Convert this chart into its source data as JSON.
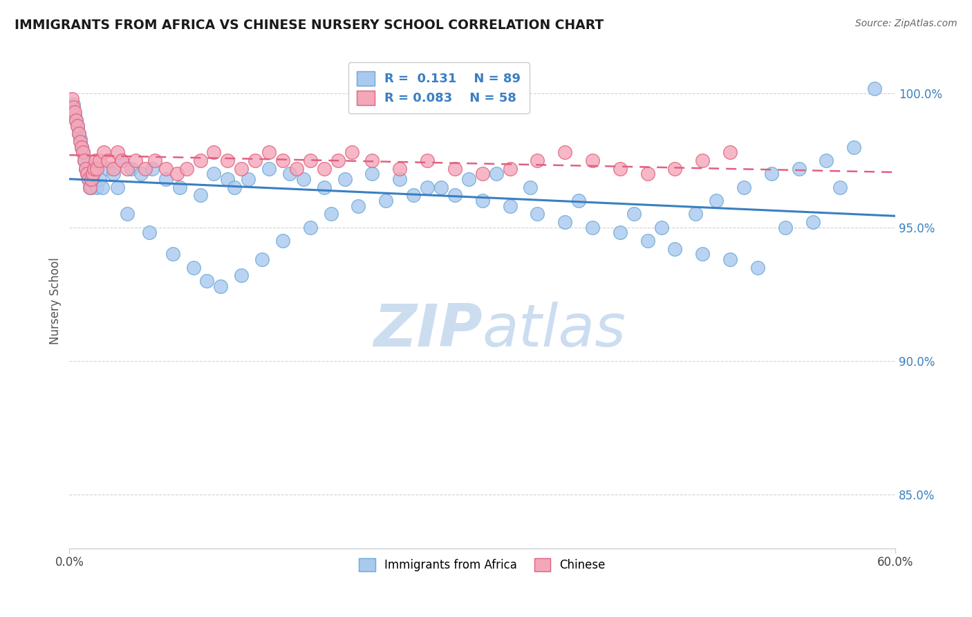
{
  "title": "IMMIGRANTS FROM AFRICA VS CHINESE NURSERY SCHOOL CORRELATION CHART",
  "source_text": "Source: ZipAtlas.com",
  "ylabel": "Nursery School",
  "xlim": [
    0.0,
    60.0
  ],
  "ylim": [
    83.0,
    101.5
  ],
  "y_ticks": [
    85.0,
    90.0,
    95.0,
    100.0
  ],
  "y_tick_labels": [
    "85.0%",
    "90.0%",
    "95.0%",
    "100.0%"
  ],
  "series1_color": "#aac9ef",
  "series1_edge_color": "#6aaad4",
  "series2_color": "#f4a7b9",
  "series2_edge_color": "#e0607e",
  "trendline1_color": "#3a7fc1",
  "trendline2_color": "#e06080",
  "watermark_color": "#ccddf0",
  "legend_label1": "Immigrants from Africa",
  "legend_label2": "Chinese",
  "blue_x": [
    0.2,
    0.3,
    0.4,
    0.5,
    0.6,
    0.7,
    0.8,
    0.9,
    1.0,
    1.1,
    1.2,
    1.3,
    1.4,
    1.5,
    1.6,
    1.7,
    1.8,
    1.9,
    2.0,
    2.2,
    2.4,
    2.8,
    3.2,
    3.8,
    4.5,
    5.2,
    6.0,
    7.0,
    8.0,
    9.5,
    10.5,
    11.5,
    12.0,
    13.0,
    14.5,
    16.0,
    17.0,
    18.5,
    20.0,
    22.0,
    24.0,
    26.0,
    28.0,
    30.0,
    32.0,
    34.0,
    36.0,
    38.0,
    40.0,
    42.0,
    44.0,
    46.0,
    48.0,
    50.0,
    52.0,
    54.0,
    56.0,
    58.5,
    3.5,
    4.2,
    5.8,
    7.5,
    9.0,
    10.0,
    11.0,
    12.5,
    14.0,
    15.5,
    17.5,
    19.0,
    21.0,
    23.0,
    25.0,
    27.0,
    29.0,
    31.0,
    33.5,
    37.0,
    41.0,
    43.0,
    45.5,
    47.0,
    49.0,
    51.0,
    53.0,
    55.0,
    57.0
  ],
  "blue_y": [
    99.4,
    99.6,
    99.2,
    99.0,
    98.8,
    98.5,
    98.3,
    98.0,
    97.8,
    97.5,
    97.2,
    97.0,
    96.8,
    96.5,
    96.5,
    96.8,
    97.0,
    97.2,
    96.5,
    96.8,
    96.5,
    97.2,
    97.0,
    97.5,
    97.2,
    97.0,
    97.2,
    96.8,
    96.5,
    96.2,
    97.0,
    96.8,
    96.5,
    96.8,
    97.2,
    97.0,
    96.8,
    96.5,
    96.8,
    97.0,
    96.8,
    96.5,
    96.2,
    96.0,
    95.8,
    95.5,
    95.2,
    95.0,
    94.8,
    94.5,
    94.2,
    94.0,
    93.8,
    93.5,
    95.0,
    95.2,
    96.5,
    100.2,
    96.5,
    95.5,
    94.8,
    94.0,
    93.5,
    93.0,
    92.8,
    93.2,
    93.8,
    94.5,
    95.0,
    95.5,
    95.8,
    96.0,
    96.2,
    96.5,
    96.8,
    97.0,
    96.5,
    96.0,
    95.5,
    95.0,
    95.5,
    96.0,
    96.5,
    97.0,
    97.2,
    97.5,
    98.0
  ],
  "pink_x": [
    0.2,
    0.3,
    0.4,
    0.5,
    0.6,
    0.7,
    0.8,
    0.9,
    1.0,
    1.1,
    1.2,
    1.3,
    1.4,
    1.5,
    1.6,
    1.7,
    1.8,
    1.9,
    2.0,
    2.2,
    2.5,
    2.8,
    3.2,
    3.5,
    3.8,
    4.2,
    4.8,
    5.5,
    6.2,
    7.0,
    7.8,
    8.5,
    9.5,
    10.5,
    11.5,
    12.5,
    13.5,
    14.5,
    15.5,
    16.5,
    17.5,
    18.5,
    19.5,
    20.5,
    22.0,
    24.0,
    26.0,
    28.0,
    30.0,
    32.0,
    34.0,
    36.0,
    38.0,
    40.0,
    42.0,
    44.0,
    46.0,
    48.0
  ],
  "pink_y": [
    99.8,
    99.5,
    99.3,
    99.0,
    98.8,
    98.5,
    98.2,
    98.0,
    97.8,
    97.5,
    97.2,
    97.0,
    96.8,
    96.5,
    96.8,
    97.0,
    97.2,
    97.5,
    97.2,
    97.5,
    97.8,
    97.5,
    97.2,
    97.8,
    97.5,
    97.2,
    97.5,
    97.2,
    97.5,
    97.2,
    97.0,
    97.2,
    97.5,
    97.8,
    97.5,
    97.2,
    97.5,
    97.8,
    97.5,
    97.2,
    97.5,
    97.2,
    97.5,
    97.8,
    97.5,
    97.2,
    97.5,
    97.2,
    97.0,
    97.2,
    97.5,
    97.8,
    97.5,
    97.2,
    97.0,
    97.2,
    97.5,
    97.8
  ]
}
